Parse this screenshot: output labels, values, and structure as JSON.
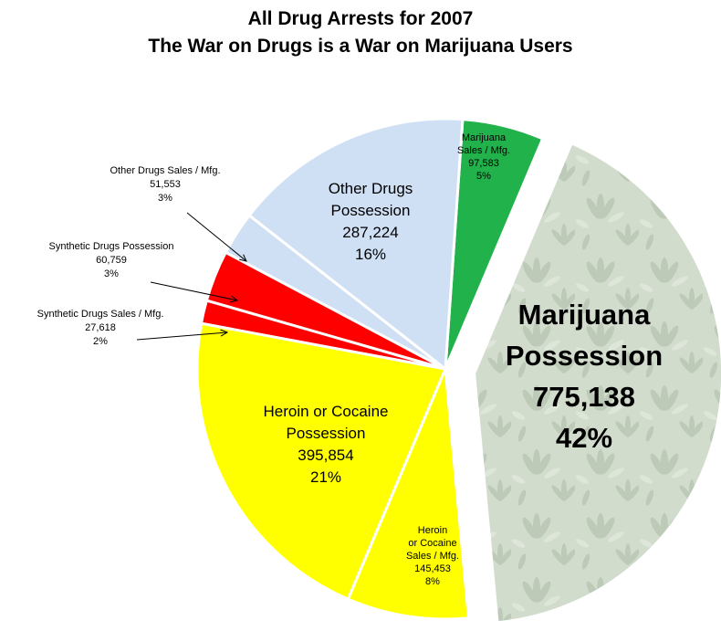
{
  "title": "All Drug Arrests for 2007",
  "subtitle": "The War on Drugs is a War on Marijuana Users",
  "colors": {
    "marijuana_sales": "#21b24b",
    "marijuana_possession": "#d2dccd",
    "heroin_cocaine": "#ffff00",
    "synthetic": "#ff0000",
    "other_drugs": "#cfe0f5"
  },
  "chart_data": {
    "type": "pie",
    "title": "All Drug Arrests for 2007",
    "subtitle": "The War on Drugs is a War on Marijuana Users",
    "slices": [
      {
        "label": "Marijuana Sales / Mfg.",
        "value": 97583,
        "value_text": "97,583",
        "percent": 5,
        "percent_text": "5%",
        "color": "#21b24b"
      },
      {
        "label": "Marijuana Possession",
        "value": 775138,
        "value_text": "775,138",
        "percent": 42,
        "percent_text": "42%",
        "color": "#d2dccd",
        "exploded": true
      },
      {
        "label": "Heroin or Cocaine Sales / Mfg.",
        "value": 145453,
        "value_text": "145,453",
        "percent": 8,
        "percent_text": "8%",
        "color": "#ffff00"
      },
      {
        "label": "Heroin or Cocaine Possession",
        "value": 395854,
        "value_text": "395,854",
        "percent": 21,
        "percent_text": "21%",
        "color": "#ffff00"
      },
      {
        "label": "Synthetic Drugs Sales / Mfg.",
        "value": 27618,
        "value_text": "27,618",
        "percent": 2,
        "percent_text": "2%",
        "color": "#ff0000"
      },
      {
        "label": "Synthetic Drugs Possession",
        "value": 60759,
        "value_text": "60,759",
        "percent": 3,
        "percent_text": "3%",
        "color": "#ff0000"
      },
      {
        "label": "Other Drugs Sales / Mfg.",
        "value": 51553,
        "value_text": "51,553",
        "percent": 3,
        "percent_text": "3%",
        "color": "#cfe0f5"
      },
      {
        "label": "Other Drugs Possession",
        "value": 287224,
        "value_text": "287,224",
        "percent": 16,
        "percent_text": "16%",
        "color": "#cfe0f5"
      }
    ]
  }
}
